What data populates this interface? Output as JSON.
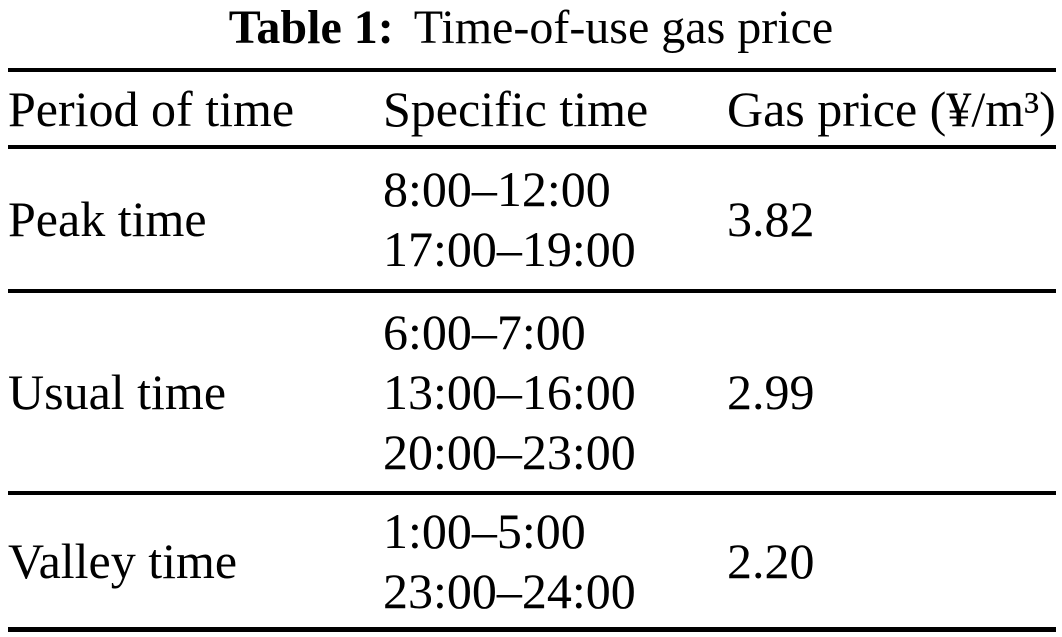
{
  "caption": {
    "label": "Table 1:",
    "title": "Time-of-use gas price"
  },
  "table": {
    "headers": [
      "Period of time",
      "Specific time",
      "Gas price (¥/m³)"
    ],
    "rows": [
      {
        "period": "Peak time",
        "times": [
          "8:00–12:00",
          "17:00–19:00"
        ],
        "price": "3.82"
      },
      {
        "period": "Usual time",
        "times": [
          "6:00–7:00",
          "13:00–16:00",
          "20:00–23:00"
        ],
        "price": "2.99"
      },
      {
        "period": "Valley time",
        "times": [
          "1:00–5:00",
          "23:00–24:00"
        ],
        "price": "2.20"
      }
    ]
  },
  "colors": {
    "text": "#000000",
    "background": "#ffffff",
    "rule": "#000000"
  }
}
